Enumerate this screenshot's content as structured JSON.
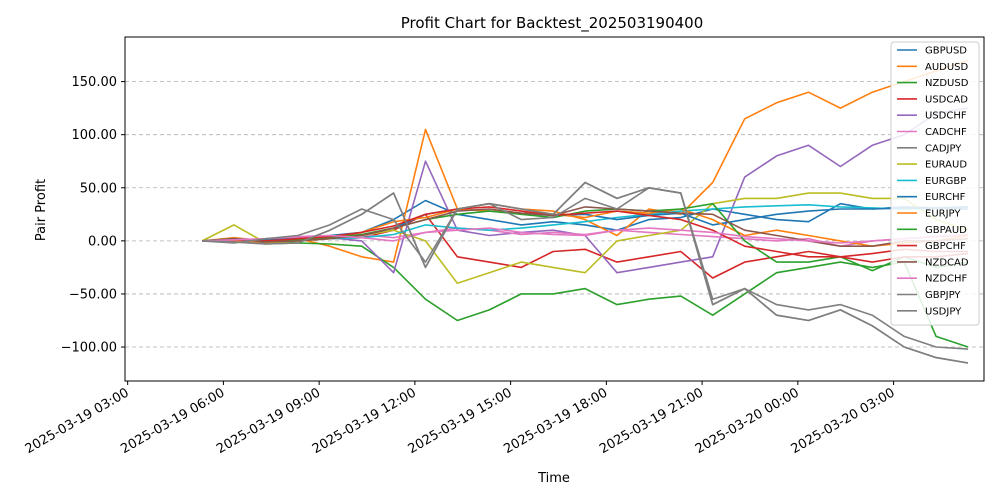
{
  "chart_data": {
    "type": "line",
    "title": "Profit Chart for Backtest_202503190400",
    "xlabel": "Time",
    "ylabel": "Pair Profit",
    "xlim": [
      "2025-03-19 02:55",
      "2025-03-20 05:50"
    ],
    "ylim": [
      -132,
      192
    ],
    "y_ticks": [
      150,
      100,
      50,
      0,
      -50,
      -100
    ],
    "y_tick_labels": [
      "150.00",
      "100.00",
      "50.00",
      "0.00",
      "−50.00",
      "−100.00"
    ],
    "x_ticks": [
      "2025-03-19 03:00",
      "2025-03-19 06:00",
      "2025-03-19 09:00",
      "2025-03-19 12:00",
      "2025-03-19 15:00",
      "2025-03-19 18:00",
      "2025-03-19 21:00",
      "2025-03-20 00:00",
      "2025-03-20 03:00"
    ],
    "x_tick_labels": [
      "2025-03-19 03:00",
      "2025-03-19 06:00",
      "2025-03-19 09:00",
      "2025-03-19 12:00",
      "2025-03-19 15:00",
      "2025-03-19 18:00",
      "2025-03-19 21:00",
      "2025-03-20 00:00",
      "2025-03-20 03:00"
    ],
    "grid": "y-dashed",
    "legend_position": "top-right",
    "x": [
      "2025-03-19 05:20",
      "2025-03-19 06:20",
      "2025-03-19 07:20",
      "2025-03-19 08:20",
      "2025-03-19 09:20",
      "2025-03-19 10:20",
      "2025-03-19 11:20",
      "2025-03-19 12:20",
      "2025-03-19 13:20",
      "2025-03-19 14:20",
      "2025-03-19 15:20",
      "2025-03-19 16:20",
      "2025-03-19 17:20",
      "2025-03-19 18:20",
      "2025-03-19 19:20",
      "2025-03-19 20:20",
      "2025-03-19 21:20",
      "2025-03-19 22:20",
      "2025-03-19 23:20",
      "2025-03-20 00:20",
      "2025-03-20 01:20",
      "2025-03-20 02:20",
      "2025-03-20 03:20",
      "2025-03-20 04:20",
      "2025-03-20 05:20"
    ],
    "series": [
      {
        "name": "GBPUSD",
        "color": "#1f77b4",
        "values": [
          0,
          2,
          -2,
          3,
          5,
          8,
          20,
          38,
          25,
          20,
          15,
          18,
          15,
          10,
          20,
          22,
          30,
          25,
          20,
          18,
          35,
          30,
          32,
          31,
          30
        ]
      },
      {
        "name": "AUDUSD",
        "color": "#ff7f0e",
        "values": [
          0,
          3,
          0,
          2,
          -5,
          -15,
          -20,
          105,
          30,
          35,
          30,
          28,
          20,
          5,
          30,
          25,
          55,
          115,
          130,
          140,
          125,
          140,
          150,
          160,
          170
        ]
      },
      {
        "name": "NZDUSD",
        "color": "#2ca02c",
        "values": [
          0,
          2,
          -1,
          -2,
          -3,
          -5,
          -25,
          -55,
          -75,
          -65,
          -50,
          -50,
          -45,
          -60,
          -55,
          -52,
          -70,
          -50,
          -30,
          -25,
          -20,
          -25,
          -20,
          -90,
          -100
        ]
      },
      {
        "name": "USDCAD",
        "color": "#d62728",
        "values": [
          0,
          1,
          0,
          1,
          2,
          3,
          10,
          25,
          -15,
          -20,
          -25,
          -10,
          -8,
          -20,
          -15,
          -10,
          -35,
          -20,
          -15,
          -10,
          -15,
          -12,
          -8,
          -10,
          -10
        ]
      },
      {
        "name": "USDCHF",
        "color": "#9467bd",
        "values": [
          0,
          -1,
          2,
          1,
          3,
          0,
          -30,
          75,
          10,
          5,
          8,
          10,
          5,
          -30,
          -25,
          -20,
          -15,
          60,
          80,
          90,
          70,
          90,
          100,
          120,
          125
        ]
      },
      {
        "name": "CADCHF",
        "color": "#e377c2",
        "values": [
          0,
          2,
          1,
          3,
          4,
          6,
          3,
          8,
          12,
          10,
          6,
          8,
          6,
          10,
          8,
          6,
          4,
          2,
          0,
          2,
          -5,
          0,
          2,
          4,
          5
        ]
      },
      {
        "name": "CADJPY",
        "color": "#7f7f7f",
        "values": [
          0,
          -1,
          -3,
          -2,
          10,
          25,
          45,
          -25,
          30,
          35,
          30,
          25,
          55,
          40,
          50,
          45,
          -60,
          -45,
          -70,
          -75,
          -65,
          -80,
          -100,
          -110,
          -115
        ]
      },
      {
        "name": "EURAUD",
        "color": "#bcbd22",
        "values": [
          0,
          15,
          -2,
          0,
          2,
          5,
          10,
          0,
          -40,
          -30,
          -20,
          -25,
          -30,
          0,
          5,
          10,
          35,
          40,
          40,
          45,
          45,
          40,
          40,
          20,
          10
        ]
      },
      {
        "name": "EURGBP",
        "color": "#17becf",
        "values": [
          0,
          1,
          0,
          1,
          2,
          3,
          6,
          15,
          12,
          10,
          12,
          15,
          18,
          22,
          25,
          28,
          30,
          32,
          33,
          34,
          32,
          31,
          30,
          31,
          32
        ]
      },
      {
        "name": "EURCHF",
        "color": "#1f77b4",
        "values": [
          0,
          1,
          1,
          2,
          3,
          5,
          12,
          25,
          30,
          28,
          26,
          24,
          25,
          20,
          24,
          26,
          15,
          20,
          25,
          28,
          30,
          30,
          31,
          31,
          32
        ]
      },
      {
        "name": "EURJPY",
        "color": "#ff7f0e",
        "values": [
          0,
          0,
          -1,
          1,
          3,
          8,
          18,
          22,
          30,
          28,
          26,
          25,
          22,
          28,
          26,
          30,
          20,
          5,
          10,
          5,
          0,
          -5,
          -2,
          0,
          5
        ]
      },
      {
        "name": "GBPAUD",
        "color": "#2ca02c",
        "values": [
          0,
          2,
          0,
          1,
          3,
          6,
          12,
          20,
          25,
          28,
          25,
          22,
          28,
          30,
          28,
          30,
          35,
          0,
          -20,
          -20,
          -15,
          -28,
          -15,
          -25,
          -20
        ]
      },
      {
        "name": "GBPCHF",
        "color": "#d62728",
        "values": [
          0,
          1,
          0,
          2,
          4,
          8,
          14,
          25,
          30,
          32,
          28,
          24,
          26,
          28,
          24,
          20,
          10,
          -5,
          -10,
          -15,
          -15,
          -20,
          -15,
          -15,
          -12
        ]
      },
      {
        "name": "NZDCAD",
        "color": "#8c564b",
        "values": [
          0,
          2,
          -1,
          0,
          2,
          5,
          12,
          20,
          28,
          30,
          26,
          24,
          32,
          30,
          28,
          26,
          25,
          10,
          5,
          0,
          -5,
          -5,
          0,
          0,
          2
        ]
      },
      {
        "name": "NZDCHF",
        "color": "#e377c2",
        "values": [
          0,
          1,
          2,
          4,
          5,
          3,
          0,
          8,
          10,
          12,
          8,
          6,
          5,
          10,
          12,
          10,
          8,
          4,
          2,
          0,
          -2,
          0,
          2,
          4,
          6
        ]
      },
      {
        "name": "GBPJPY",
        "color": "#7f7f7f",
        "values": [
          0,
          -2,
          2,
          5,
          15,
          30,
          20,
          -20,
          30,
          35,
          20,
          22,
          40,
          30,
          50,
          45,
          -55,
          -45,
          -60,
          -65,
          -60,
          -70,
          -90,
          -100,
          -102
        ]
      },
      {
        "name": "USDJPY",
        "color": "#7f7f7f",
        "values": [
          0,
          -1,
          -3,
          -2,
          10,
          25,
          45,
          -25,
          30,
          35,
          30,
          25,
          55,
          40,
          50,
          45,
          -60,
          -45,
          -70,
          -75,
          -65,
          -80,
          -100,
          -110,
          -115
        ]
      }
    ]
  }
}
